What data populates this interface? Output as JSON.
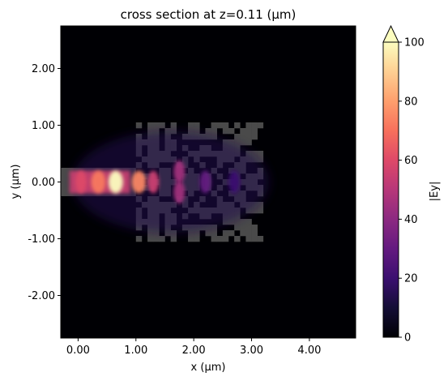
{
  "chart_data": {
    "type": "heatmap",
    "title": "cross section at z=0.11 (μm)",
    "xlabel": "x (μm)",
    "ylabel": "y (μm)",
    "colorbar_label": "|Ey|",
    "colormap": "magma",
    "xlim": [
      -0.3,
      4.8
    ],
    "ylim": [
      -2.75,
      2.75
    ],
    "clim": [
      0,
      100
    ],
    "colorbar_extend": "max",
    "x_ticks": [
      0,
      1,
      2,
      3,
      4
    ],
    "x_tick_labels": [
      "0.00",
      "1.00",
      "2.00",
      "3.00",
      "4.00"
    ],
    "y_ticks": [
      2,
      1,
      0,
      -1,
      -2
    ],
    "y_tick_labels": [
      "2.00",
      "1.00",
      "0.00",
      "-1.00",
      "-2.00"
    ],
    "colorbar_ticks": [
      0,
      20,
      40,
      60,
      80,
      100
    ],
    "colorbar_tick_labels": [
      "0",
      "20",
      "40",
      "60",
      "80",
      "100"
    ],
    "structure_color": "#4a4a4a",
    "waveguide": {
      "x_range": [
        -0.3,
        1.0
      ],
      "y_range": [
        -0.25,
        0.25
      ]
    },
    "design_region": {
      "x_range": [
        1.0,
        3.2
      ],
      "y_range": [
        -1.05,
        1.05
      ],
      "pixel_size": 0.1,
      "notes": "pixelated topology-optimized structure"
    },
    "field_hotspots": [
      {
        "x": 0.65,
        "y": 0.0,
        "value": 100
      },
      {
        "x": 0.35,
        "y": 0.0,
        "value": 72
      },
      {
        "x": 0.05,
        "y": 0.0,
        "value": 60
      },
      {
        "x": 1.05,
        "y": 0.0,
        "value": 75
      },
      {
        "x": 1.3,
        "y": 0.0,
        "value": 55
      },
      {
        "x": 1.75,
        "y": 0.18,
        "value": 45
      },
      {
        "x": 1.75,
        "y": -0.18,
        "value": 45
      },
      {
        "x": 2.2,
        "y": 0.0,
        "value": 30
      },
      {
        "x": 2.7,
        "y": 0.0,
        "value": 20
      }
    ]
  }
}
